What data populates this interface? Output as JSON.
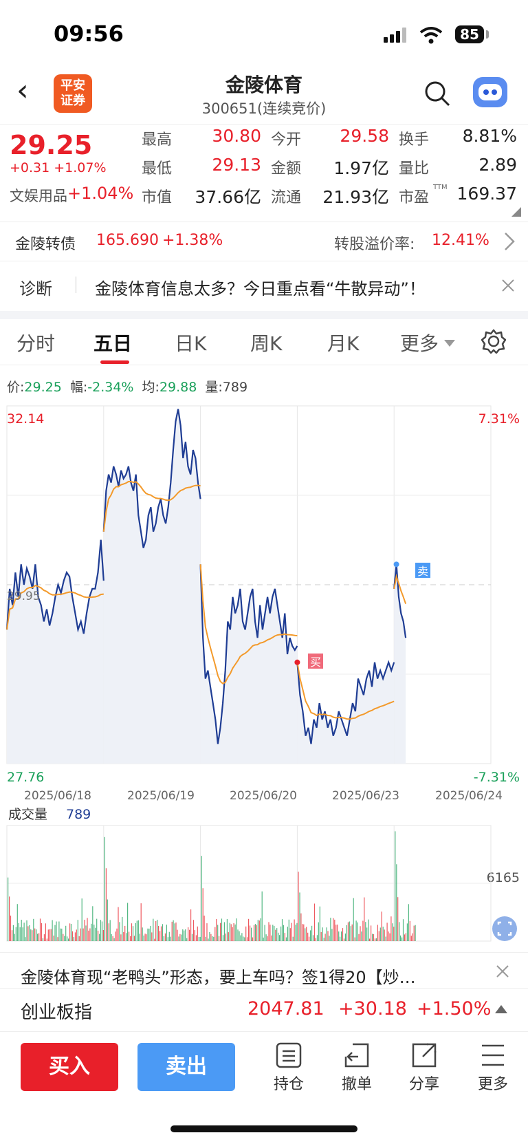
{
  "status_bar": {
    "time": "09:56",
    "battery": "85"
  },
  "header": {
    "logo_text": "平安证券",
    "title": "金陵体育",
    "code": "300651(连续竞价)"
  },
  "quote": {
    "price": "29.25",
    "change": "+0.31 +1.07%",
    "sector_label": "文娱用品",
    "sector_change": "+1.04%",
    "high_label": "最高",
    "high": "30.80",
    "low_label": "最低",
    "low": "29.13",
    "mcap_label": "市值",
    "mcap": "37.66亿",
    "open_label": "今开",
    "open": "29.58",
    "amount_label": "金额",
    "amount": "1.97亿",
    "float_label": "流通",
    "float": "21.93亿",
    "turnover_label": "换手",
    "turnover": "8.81%",
    "vol_ratio_label": "量比",
    "vol_ratio": "2.89",
    "pe_label": "市盈",
    "pe_sup": "TTM",
    "pe": "169.37"
  },
  "bond": {
    "name": "金陵转债",
    "price": "165.690",
    "change": "+1.38%",
    "premium_label": "转股溢价率:",
    "premium": "12.41%"
  },
  "diagnose": {
    "label": "诊断",
    "text": "金陵体育信息太多？今日重点看“牛散异动”！"
  },
  "tabs": [
    {
      "label": "分时"
    },
    {
      "label": "五日"
    },
    {
      "label": "日K"
    },
    {
      "label": "周K"
    },
    {
      "label": "月K"
    },
    {
      "label": "更多"
    }
  ],
  "info": {
    "price_label": "价:",
    "price": "29.25",
    "amp_label": "幅:",
    "amp": "-2.34%",
    "avg_label": "均:",
    "avg": "29.88",
    "vol_label": "量:",
    "vol": "789"
  },
  "chart_data": [
    {
      "type": "line",
      "y_top": "32.14",
      "y_bottom": "27.76",
      "y_mid": "29.95",
      "pct_top": "7.31%",
      "pct_bottom": "-7.31%",
      "ylim": [
        27.76,
        32.14
      ],
      "x_labels": [
        "2025/06/18",
        "2025/06/19",
        "2025/06/20",
        "2025/06/23",
        "2025/06/24"
      ],
      "markers": {
        "buy": "买",
        "sell": "卖"
      },
      "series": [
        {
          "values": [
            29.4,
            29.9,
            29.7,
            30.1,
            29.8,
            30.2,
            29.95,
            30.15,
            30.05,
            29.9,
            30.2,
            29.8,
            29.7,
            29.5,
            29.65,
            29.45,
            29.6,
            29.8,
            29.95,
            29.85,
            30.0,
            30.1,
            30.05,
            29.8,
            29.6,
            29.4,
            29.5,
            29.35,
            29.6,
            29.8,
            29.9,
            29.9,
            30.1,
            30.5,
            30.0
          ]
        },
        {
          "values": [
            30.6,
            31.1,
            31.3,
            31.2,
            31.4,
            31.3,
            31.15,
            31.35,
            31.25,
            31.3,
            31.4,
            31.2,
            31.1,
            31.3,
            30.8,
            30.6,
            30.4,
            30.5,
            30.8,
            30.9,
            30.6,
            30.7,
            30.9,
            31.0,
            30.8,
            30.7,
            30.9,
            31.2,
            31.6,
            31.95,
            32.1,
            31.9,
            31.5,
            31.7,
            31.4,
            31.3,
            31.6,
            31.5,
            31.2,
            31.0
          ]
        },
        {
          "values": [
            30.2,
            29.3,
            28.8,
            28.9,
            28.7,
            28.5,
            28.3,
            28.0,
            28.2,
            28.5,
            28.9,
            29.5,
            29.4,
            29.8,
            29.6,
            29.7,
            29.9,
            29.5,
            29.4,
            29.6,
            29.8,
            29.9,
            29.5,
            29.3,
            29.7,
            29.4,
            29.6,
            29.8,
            29.6,
            29.8,
            29.9,
            29.7,
            29.5,
            29.3,
            29.6,
            29.1,
            29.3,
            29.2,
            29.15,
            29.2
          ]
        },
        {
          "values": [
            29.0,
            28.6,
            28.4,
            28.1,
            28.2,
            28.0,
            28.3,
            28.2,
            28.5,
            28.3,
            28.4,
            28.2,
            28.3,
            28.1,
            28.2,
            28.4,
            28.3,
            28.2,
            28.1,
            28.3,
            28.5,
            28.4,
            28.8,
            28.7,
            28.6,
            28.8,
            28.9,
            28.7,
            29.0,
            28.8,
            28.9,
            28.8,
            28.9,
            29.0,
            28.9,
            29.0
          ]
        },
        {
          "values": [
            29.9,
            30.2,
            29.8,
            29.6,
            29.5,
            29.3
          ]
        }
      ]
    },
    {
      "type": "bar",
      "title": "成交量",
      "value_label": "789",
      "max_label": "6165"
    }
  ],
  "news": {
    "text": "金陵体育现“老鸭头”形态，要上车吗？签1得20【炒…"
  },
  "index": {
    "name": "创业板指",
    "value": "2047.81",
    "change": "+30.18",
    "pct": "+1.50%"
  },
  "bottom": {
    "buy": "买入",
    "sell": "卖出",
    "tools": [
      {
        "label": "持仓"
      },
      {
        "label": "撤单"
      },
      {
        "label": "分享"
      },
      {
        "label": "更多"
      }
    ]
  },
  "colors": {
    "up": "#e8202a",
    "down": "#1aa05a",
    "line": "#1f3d94",
    "avg": "#f39a2b",
    "buy_btn": "#e8202a",
    "sell_btn": "#4b9af5"
  }
}
